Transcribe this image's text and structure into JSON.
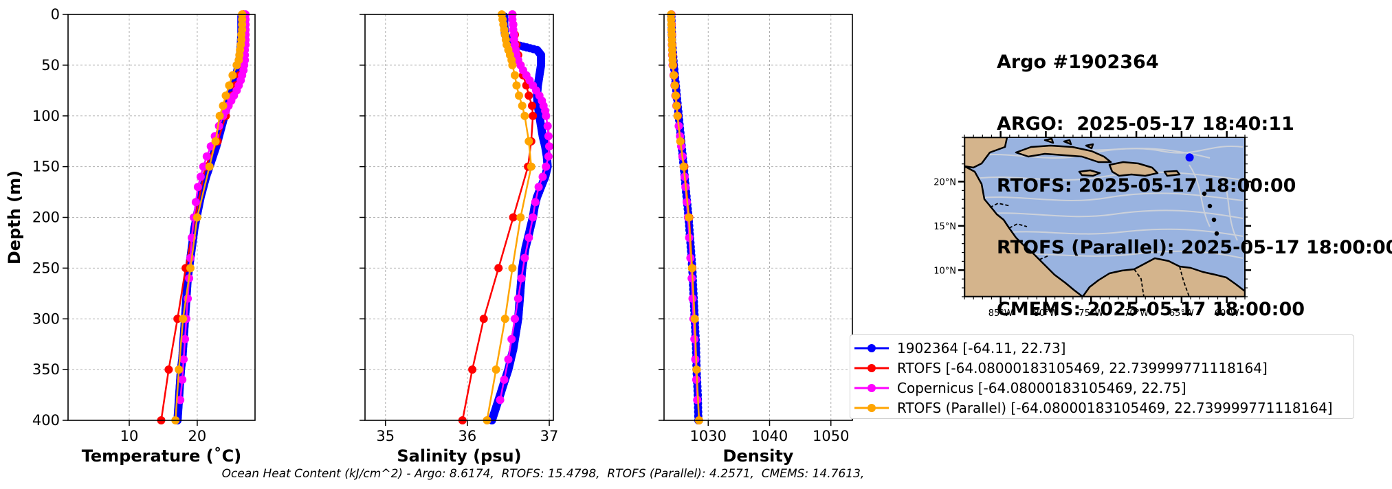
{
  "info": {
    "lines": [
      "Argo #1902364",
      "ARGO:  2025-05-17 18:40:11",
      "RTOFS: 2025-05-17 18:00:00",
      "RTOFS (Parallel): 2025-05-17 18:00:00",
      "CMEMS: 2025-05-17 18:00:00"
    ]
  },
  "legend": {
    "items": [
      {
        "label": "1902364 [-64.11, 22.73]",
        "color": "#0000ff"
      },
      {
        "label": "RTOFS [-64.08000183105469, 22.739999771118164]",
        "color": "#ff0000"
      },
      {
        "label": "Copernicus [-64.08000183105469, 22.75]",
        "color": "#ff00ff"
      },
      {
        "label": "RTOFS (Parallel) [-64.08000183105469, 22.739999771118164]",
        "color": "#ffa500"
      }
    ]
  },
  "footer": "Ocean Heat Content (kJ/cm^2) - Argo: 8.6174,  RTOFS: 15.4798,  RTOFS (Parallel): 4.2571,  CMEMS: 14.7613,",
  "map": {
    "lon_labels": [
      "85°W",
      "80°W",
      "75°W",
      "70°W",
      "65°W",
      "60°W"
    ],
    "lon_values": [
      -85,
      -80,
      -75,
      -70,
      -65,
      -60
    ],
    "lat_labels": [
      "10°N",
      "15°N",
      "20°N"
    ],
    "lat_values": [
      10,
      15,
      20
    ],
    "extent": {
      "lon": [
        -89,
        -58
      ],
      "lat": [
        7,
        25
      ]
    },
    "float_position": {
      "lon": -64.11,
      "lat": 22.73
    },
    "ocean_color": "#99b3e0",
    "land_color": "#d4b48c"
  },
  "chart_data": [
    {
      "type": "line",
      "xlabel": "Temperature (˚C)",
      "ylabel": "Depth (m)",
      "xlim": [
        1,
        28.5
      ],
      "ylim": [
        400,
        0
      ],
      "xticks": [
        10,
        20
      ],
      "yticks": [
        0,
        50,
        100,
        150,
        200,
        250,
        300,
        350,
        400
      ],
      "grid": true,
      "series": [
        {
          "name": "1902364 [-64.11, 22.73]",
          "color": "#0000ff",
          "style": "dense",
          "depth": [
            2,
            10,
            20,
            30,
            40,
            50,
            60,
            70,
            80,
            90,
            100,
            110,
            120,
            130,
            140,
            150,
            160,
            170,
            180,
            190,
            200,
            210,
            220,
            230,
            240,
            250,
            260,
            270,
            280,
            290,
            300,
            310,
            320,
            330,
            340,
            350,
            360,
            370,
            380,
            390,
            400
          ],
          "values": [
            26.5,
            26.5,
            26.5,
            26.4,
            26.3,
            26.1,
            25.7,
            25.2,
            24.8,
            24.4,
            24.0,
            23.6,
            23.2,
            22.8,
            22.3,
            21.8,
            21.3,
            20.9,
            20.5,
            20.2,
            19.9,
            19.6,
            19.4,
            19.2,
            19.0,
            18.8,
            18.6,
            18.5,
            18.4,
            18.3,
            18.2,
            18.1,
            18.0,
            17.9,
            17.8,
            17.6,
            17.5,
            17.4,
            17.3,
            17.2,
            17.1
          ]
        },
        {
          "name": "RTOFS [-64.08000183105469, 22.739999771118164]",
          "color": "#ff0000",
          "depth": [
            0,
            10,
            20,
            30,
            40,
            50,
            60,
            70,
            80,
            90,
            100,
            125,
            150,
            200,
            250,
            300,
            350,
            400
          ],
          "values": [
            26.8,
            26.8,
            26.8,
            26.7,
            26.7,
            26.6,
            26.2,
            25.6,
            25.1,
            24.6,
            24.2,
            23.0,
            21.2,
            19.7,
            18.3,
            17.1,
            15.8,
            14.7
          ]
        },
        {
          "name": "Copernicus [-64.08000183105469, 22.75]",
          "color": "#ff00ff",
          "depth": [
            0,
            5,
            10,
            15,
            20,
            25,
            30,
            35,
            40,
            45,
            50,
            55,
            60,
            65,
            70,
            75,
            80,
            85,
            90,
            95,
            100,
            110,
            120,
            130,
            140,
            150,
            160,
            170,
            185,
            200,
            220,
            240,
            260,
            280,
            300,
            320,
            340,
            360,
            380
          ],
          "values": [
            27.1,
            27.1,
            27.1,
            27.1,
            27.1,
            27.1,
            27.1,
            27.0,
            27.0,
            27.0,
            26.9,
            26.8,
            26.6,
            26.4,
            26.1,
            25.8,
            25.4,
            25.0,
            24.6,
            24.2,
            23.8,
            23.2,
            22.6,
            22.0,
            21.4,
            20.9,
            20.5,
            20.1,
            19.8,
            19.5,
            19.2,
            19.0,
            18.8,
            18.6,
            18.4,
            18.2,
            18.0,
            17.8,
            17.5
          ]
        },
        {
          "name": "RTOFS (Parallel) [-64.08000183105469, 22.739999771118164]",
          "color": "#ffa500",
          "depth": [
            0,
            5,
            10,
            15,
            20,
            25,
            30,
            35,
            40,
            45,
            50,
            60,
            70,
            80,
            90,
            100,
            125,
            150,
            200,
            250,
            300,
            350,
            400
          ],
          "values": [
            26.6,
            26.6,
            26.6,
            26.6,
            26.5,
            26.5,
            26.4,
            26.3,
            26.2,
            26.1,
            25.8,
            25.2,
            24.7,
            24.2,
            23.8,
            23.3,
            22.7,
            21.8,
            20.0,
            19.0,
            17.9,
            17.3,
            16.8
          ]
        }
      ]
    },
    {
      "type": "line",
      "xlabel": "Salinity (psu)",
      "xlim": [
        34.75,
        37.05
      ],
      "ylim": [
        400,
        0
      ],
      "xticks": [
        35,
        36,
        37
      ],
      "yticks": [
        0,
        50,
        100,
        150,
        200,
        250,
        300,
        350,
        400
      ],
      "grid": true,
      "series": [
        {
          "name": "1902364 [-64.11, 22.73]",
          "color": "#0000ff",
          "style": "dense",
          "depth": [
            2,
            10,
            20,
            25,
            30,
            35,
            40,
            50,
            60,
            70,
            80,
            90,
            100,
            110,
            120,
            130,
            140,
            150,
            160,
            170,
            180,
            190,
            200,
            210,
            220,
            230,
            240,
            250,
            260,
            270,
            280,
            290,
            300,
            310,
            320,
            330,
            340,
            350,
            360,
            370,
            380,
            390,
            400
          ],
          "values": [
            36.45,
            36.45,
            36.46,
            36.5,
            36.6,
            36.85,
            36.9,
            36.9,
            36.88,
            36.86,
            36.85,
            36.86,
            36.88,
            36.9,
            36.92,
            36.95,
            36.97,
            36.98,
            36.95,
            36.9,
            36.85,
            36.82,
            36.8,
            36.77,
            36.74,
            36.71,
            36.69,
            36.67,
            36.66,
            36.65,
            36.64,
            36.63,
            36.62,
            36.6,
            36.58,
            36.56,
            36.53,
            36.5,
            36.46,
            36.42,
            36.38,
            36.34,
            36.3
          ]
        },
        {
          "name": "RTOFS [-64.08000183105469, 22.739999771118164]",
          "color": "#ff0000",
          "depth": [
            0,
            10,
            20,
            30,
            40,
            50,
            60,
            70,
            80,
            90,
            100,
            125,
            150,
            200,
            250,
            300,
            350,
            400
          ],
          "values": [
            36.55,
            36.56,
            36.58,
            36.6,
            36.62,
            36.65,
            36.68,
            36.72,
            36.75,
            36.79,
            36.8,
            36.78,
            36.74,
            36.56,
            36.38,
            36.2,
            36.06,
            35.94
          ]
        },
        {
          "name": "Copernicus [-64.08000183105469, 22.75]",
          "color": "#ff00ff",
          "depth": [
            0,
            5,
            10,
            15,
            20,
            25,
            30,
            35,
            40,
            45,
            50,
            55,
            60,
            65,
            70,
            75,
            80,
            85,
            90,
            95,
            100,
            110,
            120,
            130,
            140,
            150,
            160,
            170,
            185,
            200,
            220,
            240,
            260,
            280,
            300,
            320,
            340,
            360,
            380
          ],
          "values": [
            36.55,
            36.55,
            36.56,
            36.56,
            36.57,
            36.57,
            36.58,
            36.59,
            36.6,
            36.62,
            36.65,
            36.68,
            36.72,
            36.76,
            36.8,
            36.84,
            36.88,
            36.91,
            36.93,
            36.95,
            36.96,
            36.98,
            36.99,
            37.0,
            36.99,
            36.96,
            36.92,
            36.87,
            36.83,
            36.8,
            36.75,
            36.7,
            36.66,
            36.62,
            36.58,
            36.54,
            36.5,
            36.45,
            36.4
          ]
        },
        {
          "name": "RTOFS (Parallel) [-64.08000183105469, 22.739999771118164]",
          "color": "#ffa500",
          "depth": [
            0,
            5,
            10,
            15,
            20,
            25,
            30,
            35,
            40,
            45,
            50,
            60,
            70,
            80,
            90,
            100,
            125,
            150,
            200,
            250,
            300,
            350,
            400
          ],
          "values": [
            36.42,
            36.43,
            36.44,
            36.45,
            36.46,
            36.47,
            36.48,
            36.5,
            36.52,
            36.54,
            36.55,
            36.58,
            36.6,
            36.63,
            36.67,
            36.7,
            36.75,
            36.78,
            36.65,
            36.55,
            36.46,
            36.35,
            36.24
          ]
        }
      ]
    },
    {
      "type": "line",
      "xlabel": "Density",
      "xlim": [
        1022.8,
        1053.5
      ],
      "ylim": [
        400,
        0
      ],
      "xticks": [
        1030,
        1040,
        1050
      ],
      "yticks": [
        0,
        50,
        100,
        150,
        200,
        250,
        300,
        350,
        400
      ],
      "grid": true,
      "series": [
        {
          "name": "1902364 [-64.11, 22.73]",
          "color": "#0000ff",
          "style": "dense",
          "depth": [
            2,
            25,
            50,
            75,
            100,
            125,
            150,
            175,
            200,
            225,
            250,
            275,
            300,
            325,
            350,
            375,
            400
          ],
          "values": [
            1024.0,
            1024.1,
            1024.4,
            1024.8,
            1025.2,
            1025.6,
            1026.0,
            1026.4,
            1026.8,
            1027.1,
            1027.4,
            1027.6,
            1027.8,
            1028.0,
            1028.1,
            1028.3,
            1028.4
          ]
        },
        {
          "name": "RTOFS [-64.08000183105469, 22.739999771118164]",
          "color": "#ff0000",
          "depth": [
            0,
            10,
            20,
            30,
            40,
            50,
            60,
            70,
            80,
            90,
            100,
            125,
            150,
            200,
            250,
            300,
            350,
            400
          ],
          "values": [
            1024.0,
            1024.05,
            1024.1,
            1024.15,
            1024.2,
            1024.3,
            1024.45,
            1024.6,
            1024.75,
            1024.9,
            1025.05,
            1025.5,
            1026.1,
            1026.9,
            1027.4,
            1027.8,
            1028.1,
            1028.5
          ]
        },
        {
          "name": "Copernicus [-64.08000183105469, 22.75]",
          "color": "#ff00ff",
          "depth": [
            0,
            10,
            20,
            30,
            40,
            50,
            60,
            70,
            80,
            90,
            100,
            110,
            120,
            130,
            140,
            150,
            160,
            170,
            185,
            200,
            220,
            240,
            260,
            280,
            300,
            320,
            340,
            360,
            380
          ],
          "values": [
            1024.0,
            1024.02,
            1024.05,
            1024.08,
            1024.12,
            1024.2,
            1024.35,
            1024.5,
            1024.65,
            1024.8,
            1025.0,
            1025.2,
            1025.4,
            1025.6,
            1025.8,
            1026.0,
            1026.15,
            1026.3,
            1026.5,
            1026.7,
            1026.9,
            1027.1,
            1027.3,
            1027.45,
            1027.6,
            1027.75,
            1027.9,
            1028.05,
            1028.2
          ]
        },
        {
          "name": "RTOFS (Parallel) [-64.08000183105469, 22.739999771118164]",
          "color": "#ffa500",
          "depth": [
            0,
            5,
            10,
            15,
            20,
            25,
            30,
            35,
            40,
            45,
            50,
            60,
            70,
            80,
            90,
            100,
            125,
            150,
            200,
            250,
            300,
            350,
            400
          ],
          "values": [
            1023.95,
            1023.97,
            1024.0,
            1024.02,
            1024.05,
            1024.08,
            1024.1,
            1024.13,
            1024.16,
            1024.2,
            1024.25,
            1024.4,
            1024.55,
            1024.7,
            1024.85,
            1025.0,
            1025.45,
            1026.0,
            1026.85,
            1027.35,
            1027.8,
            1028.1,
            1028.5
          ]
        }
      ]
    }
  ]
}
